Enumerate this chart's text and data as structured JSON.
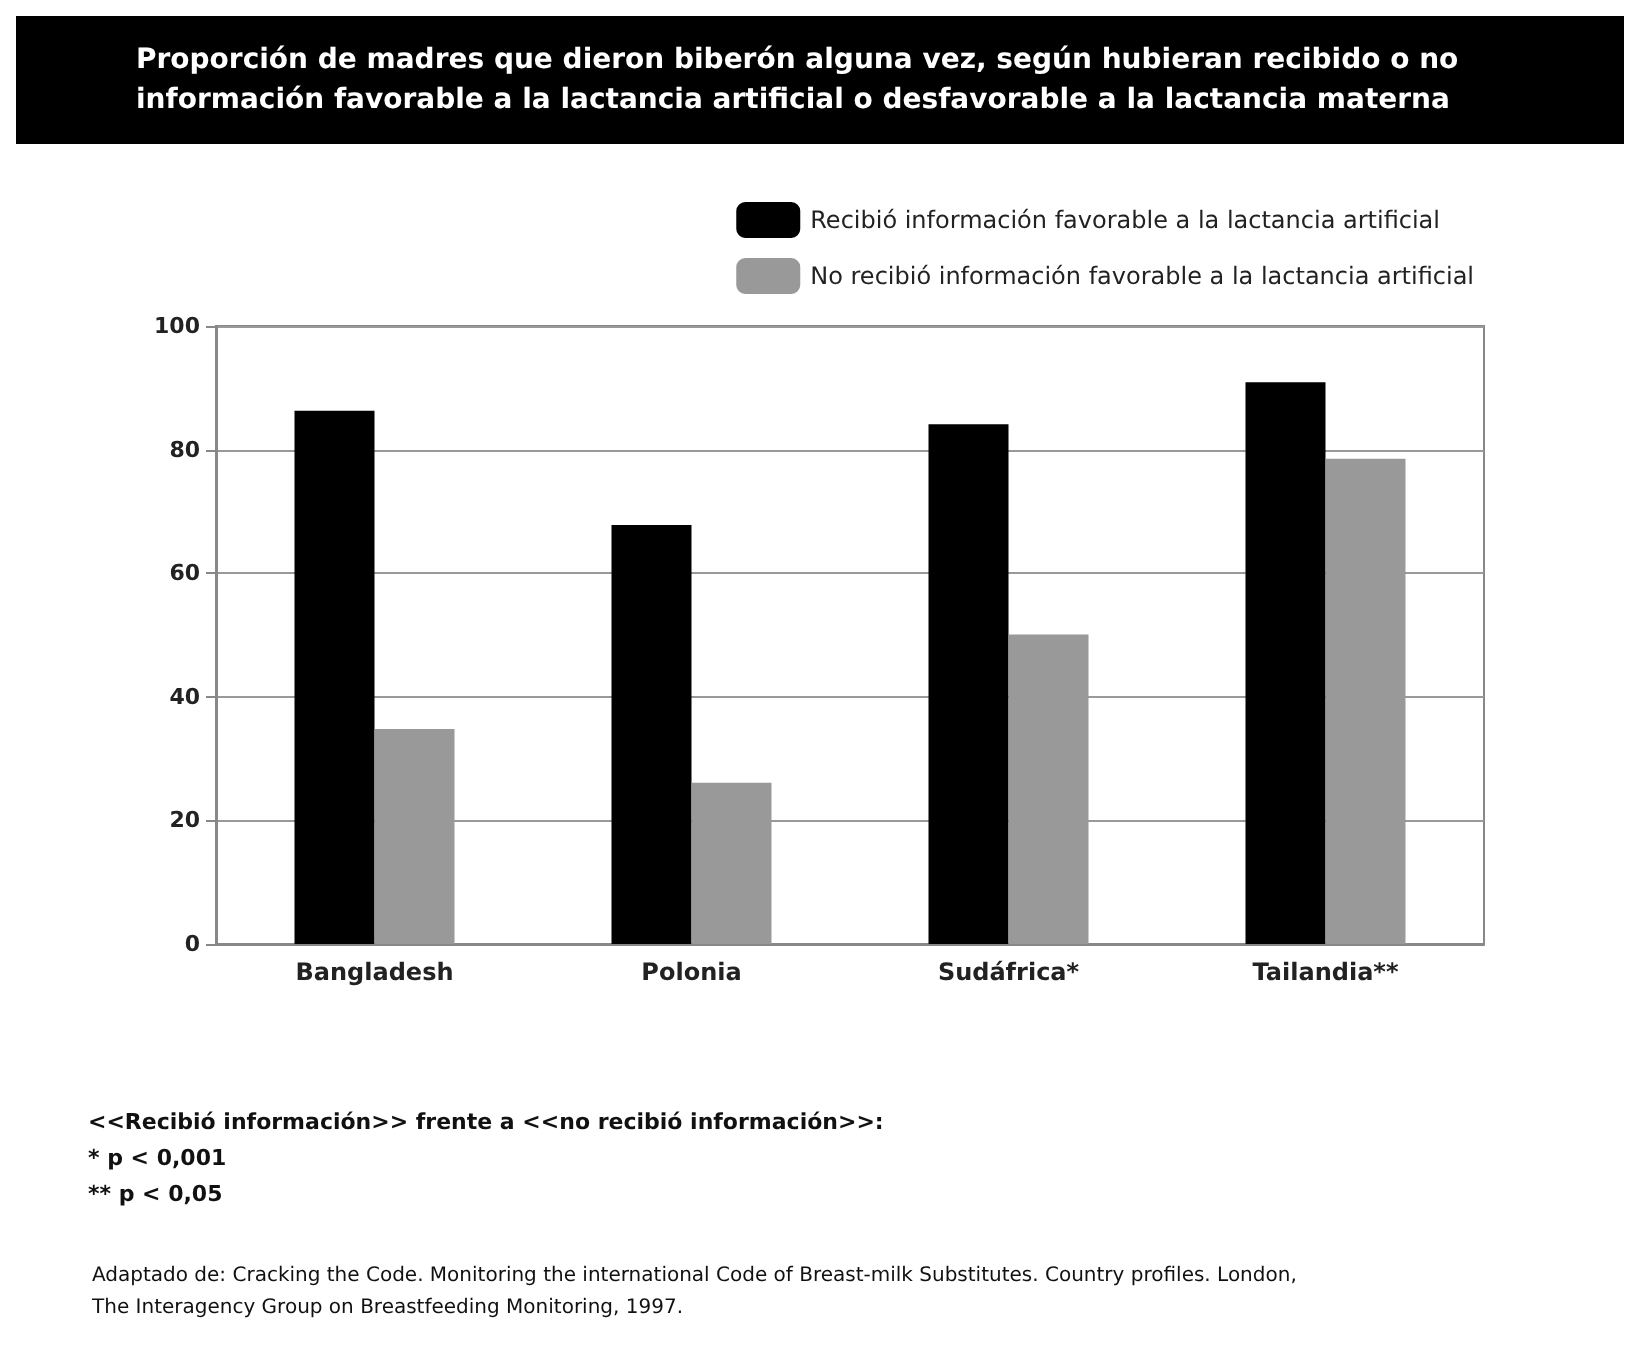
{
  "chart_data": {
    "type": "bar",
    "title": "Proporción de madres que dieron biberón alguna vez, según hubieran recibido o no información favorable a la lactancia artificial o desfavorable a la lactancia materna",
    "categories": [
      "Bangladesh",
      "Polonia",
      "Sudáfrica*",
      "Tailandia**"
    ],
    "series": [
      {
        "name": "Recibió información favorable a la lactancia artificial",
        "color": "#000000",
        "values": [
          86.3,
          67.8,
          84.1,
          90.9
        ]
      },
      {
        "name": "No recibió información favorable a la lactancia artificial",
        "color": "#999999",
        "values": [
          34.8,
          26.1,
          50.1,
          78.5
        ]
      }
    ],
    "ylim": [
      0,
      100
    ],
    "yticks": [
      0,
      20,
      40,
      60,
      80,
      100
    ],
    "grid": "y",
    "legend": "top right",
    "annotations": [
      "<<Recibió información>> frente a <<no recibió información>>:",
      "* p < 0,001",
      "** p < 0,05",
      "Adaptado de: Cracking the Code. Monitoring the international Code of Breast-milk Substitutes. Country profiles. London, The Interagency Group on Breastfeeding Monitoring, 1997."
    ]
  }
}
